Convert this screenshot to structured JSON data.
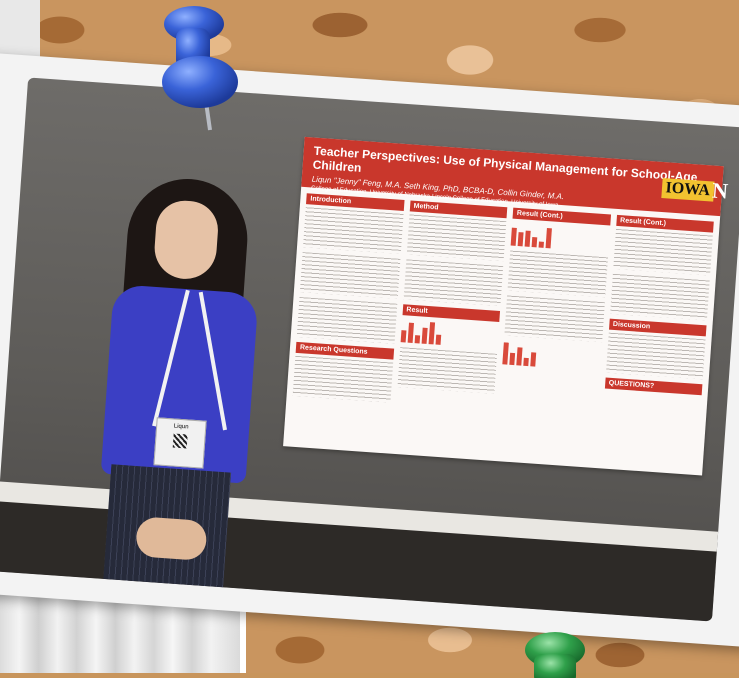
{
  "scene": {
    "description_colors": {
      "cork": "#c9955f",
      "poster_red": "#c9372c",
      "cardigan": "#3b3fc4",
      "pin_blue": "#3a63d8",
      "pin_green": "#2fa04a"
    }
  },
  "poster": {
    "title": "Teacher Perspectives: Use of Physical Management for School-Age Children",
    "authors": "Liqun \"Jenny\" Feng, M.A.     Seth King, PhD, BCBA-D, Collin Ginder, M.A.",
    "affiliation": "College of Education, University of Nebraska-Lincoln      College of Education, University of Iowa",
    "logo": "IOWA",
    "logo_n": "N",
    "sections": {
      "intro": "Introduction",
      "method": "Method",
      "result_cont_1": "Result (Cont.)",
      "result_cont_2": "Result (Cont.)",
      "result": "Result",
      "research_questions": "Research Questions",
      "discussion": "Discussion",
      "questions": "QUESTIONS?"
    }
  },
  "badge": {
    "name": "Liqun"
  }
}
